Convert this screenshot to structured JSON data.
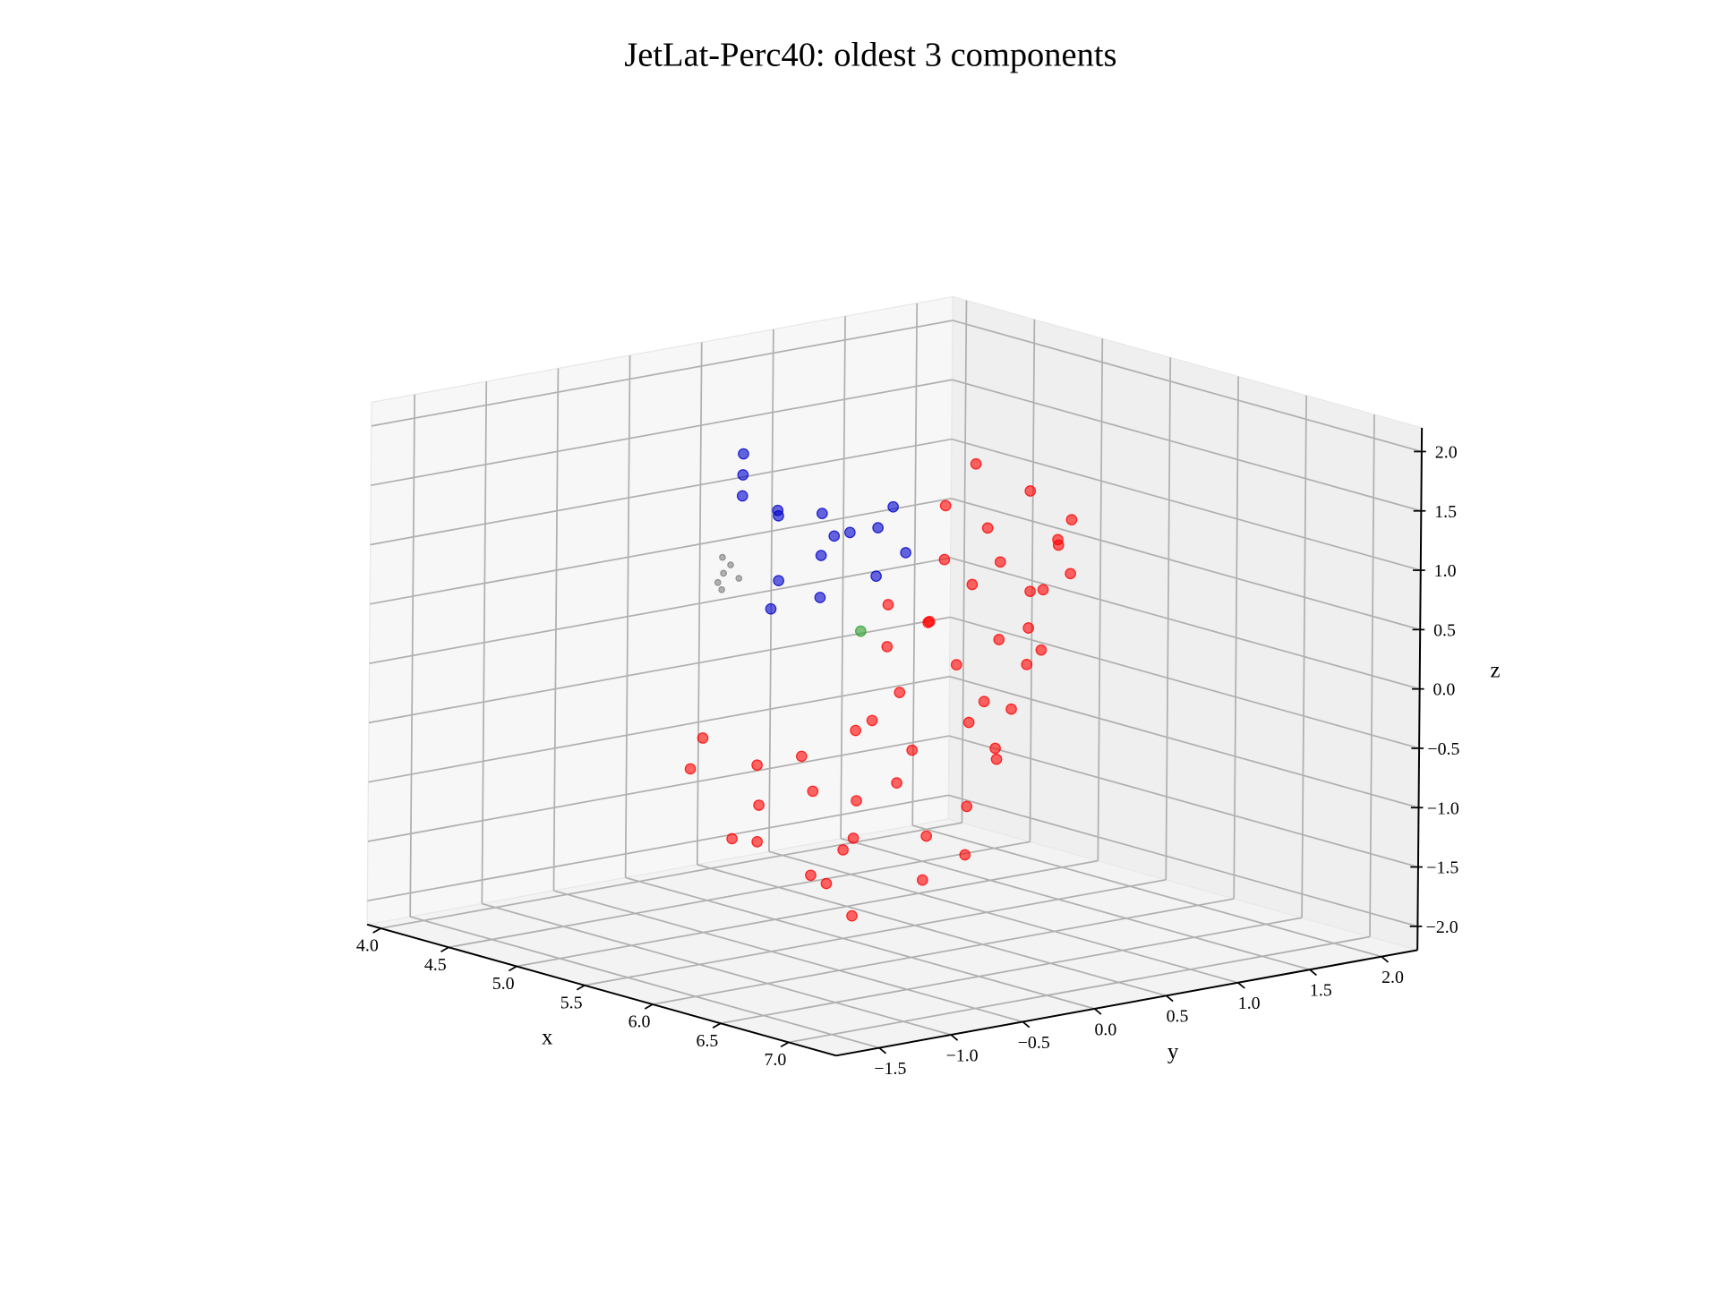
{
  "chart_data": {
    "type": "scatter3d",
    "title": "JetLat-Perc40: oldest 3 components",
    "xlabel": "x",
    "ylabel": "y",
    "zlabel": "z",
    "xlim": [
      3.9,
      7.35
    ],
    "ylim": [
      -1.8,
      2.25
    ],
    "zlim": [
      -2.2,
      2.2
    ],
    "xticks": [
      {
        "value": 4,
        "label": "4.0"
      },
      {
        "value": 4.5,
        "label": "4.5"
      },
      {
        "value": 5,
        "label": "5.0"
      },
      {
        "value": 5.5,
        "label": "5.5"
      },
      {
        "value": 6,
        "label": "6.0"
      },
      {
        "value": 6.5,
        "label": "6.5"
      },
      {
        "value": 7,
        "label": "7.0"
      }
    ],
    "yticks": [
      {
        "value": -1.5,
        "label": "−1.5"
      },
      {
        "value": -1,
        "label": "−1.0"
      },
      {
        "value": -0.5,
        "label": "−0.5"
      },
      {
        "value": 0,
        "label": "0.0"
      },
      {
        "value": 0.5,
        "label": "0.5"
      },
      {
        "value": 1,
        "label": "1.0"
      },
      {
        "value": 1.5,
        "label": "1.5"
      },
      {
        "value": 2,
        "label": "2.0"
      }
    ],
    "zticks": [
      {
        "value": -2,
        "label": "−2.0"
      },
      {
        "value": -1.5,
        "label": "−1.5"
      },
      {
        "value": -1,
        "label": "−1.0"
      },
      {
        "value": -0.5,
        "label": "−0.5"
      },
      {
        "value": 0,
        "label": "0.0"
      },
      {
        "value": 0.5,
        "label": "0.5"
      },
      {
        "value": 1,
        "label": "1.0"
      },
      {
        "value": 1.5,
        "label": "1.5"
      },
      {
        "value": 2,
        "label": "2.0"
      }
    ],
    "grid": true,
    "series": [
      {
        "color": "#808080",
        "x": [
          5.0,
          5.02,
          4.98,
          5.05,
          4.97,
          5.03
        ],
        "y": [
          -0.38,
          -0.35,
          -0.4,
          -0.32,
          -0.36,
          -0.42
        ],
        "z": [
          0.8,
          0.87,
          0.72,
          0.76,
          0.92,
          0.68
        ]
      },
      {
        "color": "#0000cc",
        "x": [
          5.0,
          5.05,
          4.95,
          5.1,
          5.0,
          5.2,
          5.0,
          5.1,
          4.9,
          5.0,
          5.1,
          4.9,
          5.2,
          5.0,
          5.3,
          4.95
        ],
        "y": [
          -0.25,
          -0.3,
          -0.2,
          -0.1,
          0.0,
          0.2,
          0.5,
          0.6,
          0.4,
          0.3,
          0.2,
          0.1,
          0.7,
          0.8,
          0.4,
          0.0
        ],
        "z": [
          1.6,
          1.45,
          1.75,
          1.3,
          1.2,
          1.05,
          0.95,
          1.0,
          1.1,
          0.8,
          0.5,
          0.6,
          0.8,
          1.1,
          0.7,
          0.4
        ]
      },
      {
        "color": "#2ca02c",
        "x": [
          6.0
        ],
        "y": [
          -0.37
        ],
        "z": [
          0.63
        ]
      },
      {
        "color": "#ff0000",
        "x": [
          5.6,
          5.9,
          6.2,
          6.5,
          5.5,
          5.8,
          6.1,
          6.4,
          5.7,
          6.0,
          6.3,
          5.4,
          6.6,
          6.0,
          5.6,
          6.2,
          5.9,
          6.5,
          5.7,
          6.1,
          5.9,
          6.2,
          5.7,
          6.0,
          6.3,
          5.8,
          6.1,
          6.1,
          5.6,
          6.0,
          6.2,
          5.9,
          6.0,
          6.2,
          5.8,
          6.1,
          6.0,
          5.9,
          6.0,
          5.5,
          5.7,
          5.8,
          6.0,
          6.2,
          5.8,
          5.9,
          6.3,
          5.0,
          5.1,
          5.3
        ],
        "y": [
          -0.7,
          -0.5,
          -0.6,
          -0.4,
          -0.3,
          -0.2,
          -0.1,
          0.0,
          -0.8,
          -0.4,
          -0.7,
          -0.5,
          -0.2,
          0.1,
          -0.1,
          -0.3,
          -0.6,
          0.1,
          0.0,
          -0.8,
          0.0,
          0.2,
          0.1,
          0.3,
          0.4,
          0.3,
          0.5,
          0.4,
          0.2,
          0.1,
          0.7,
          0.5,
          0.6,
          0.9,
          0.7,
          1.0,
          0.9,
          0.9,
          1.0,
          0.9,
          0.5,
          1.0,
          0.8,
          0.6,
          0.4,
          1.1,
          0.3,
          -0.6,
          -0.4,
          -0.8
        ],
        "z": [
          -1.2,
          -1.5,
          -1.0,
          -1.3,
          -0.6,
          -0.9,
          -0.4,
          -0.8,
          -0.5,
          -0.2,
          -1.6,
          -1.0,
          -1.1,
          -1.2,
          -1.4,
          -0.6,
          -0.7,
          -0.3,
          -0.3,
          -1.3,
          0.0,
          -0.2,
          0.3,
          0.2,
          -0.1,
          0.5,
          0.4,
          -0.1,
          0.6,
          0.6,
          0.3,
          0.8,
          1.0,
          0.9,
          1.2,
          1.3,
          0.7,
          1.5,
          1.1,
          1.6,
          1.4,
          0.6,
          0.4,
          0.2,
          1.0,
          1.0,
          -0.5,
          -0.8,
          -1.4,
          -0.4
        ]
      }
    ]
  }
}
